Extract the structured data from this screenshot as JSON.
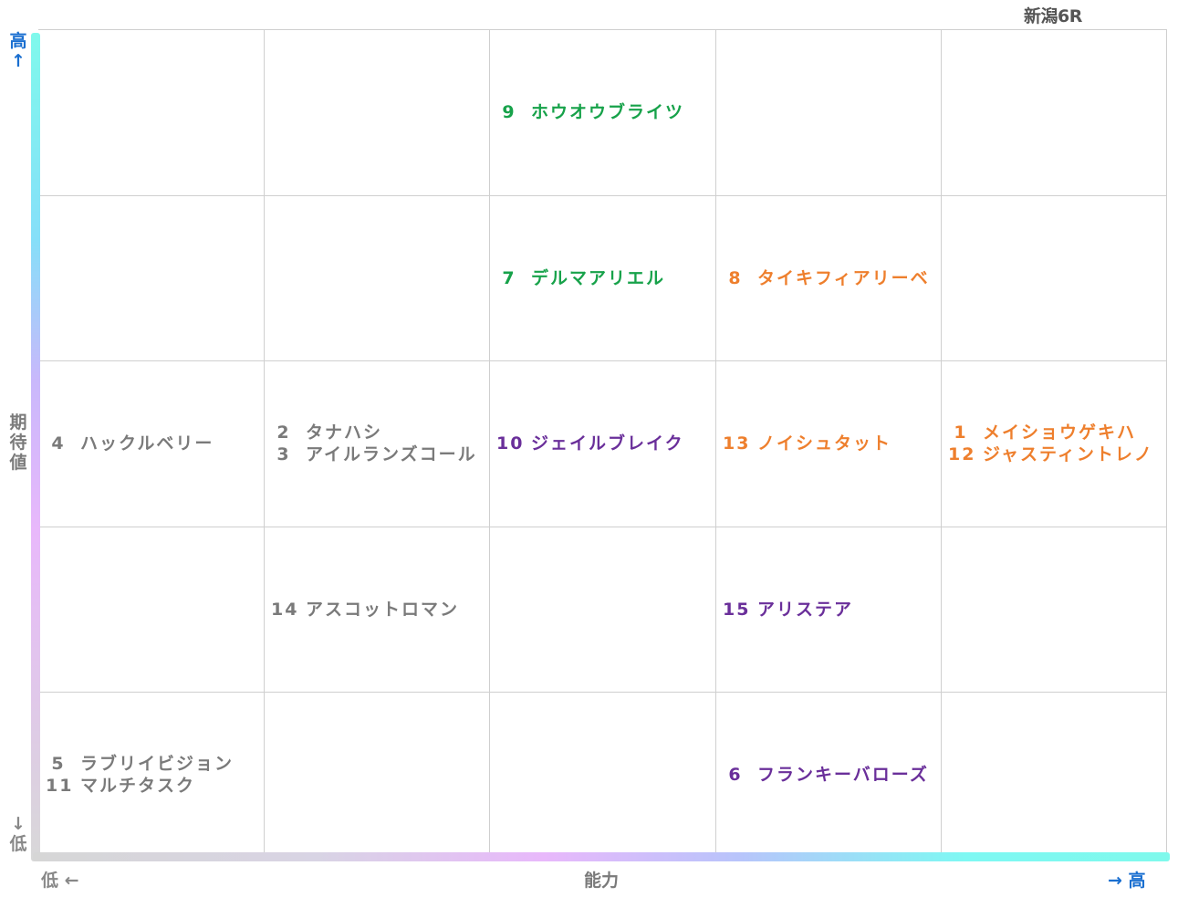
{
  "title": "新潟6R",
  "y_axis": {
    "label": "期待値",
    "high": "高↑",
    "low": "↓低",
    "high_color": "#1a6fd0",
    "low_color": "#888888"
  },
  "x_axis": {
    "label": "能力",
    "low": "低 ←",
    "high": "→ 高",
    "high_color": "#1a6fd0",
    "low_color": "#888888"
  },
  "colors": {
    "green": "#17a24a",
    "orange": "#ee7f2d",
    "purple": "#6a2f9a",
    "gray": "#7a7a7a",
    "grid": "#cfcfcf"
  },
  "chart_data": {
    "type": "scatter",
    "title": "新潟6R",
    "xlabel": "能力",
    "ylabel": "期待値",
    "x_levels": 5,
    "y_levels": 5,
    "points": [
      {
        "number": "9",
        "name": "ホウオウブライツ",
        "x": 3,
        "y": 5,
        "color": "green"
      },
      {
        "number": "7",
        "name": "デルマアリエル",
        "x": 3,
        "y": 4,
        "color": "green"
      },
      {
        "number": "8",
        "name": "タイキフィアリーベ",
        "x": 4,
        "y": 4,
        "color": "orange"
      },
      {
        "number": "4",
        "name": "ハックルベリー",
        "x": 1,
        "y": 3,
        "color": "gray"
      },
      {
        "number": "2",
        "name": "タナハシ",
        "x": 2,
        "y": 3,
        "color": "gray"
      },
      {
        "number": "3",
        "name": "アイルランズコール",
        "x": 2,
        "y": 3,
        "color": "gray"
      },
      {
        "number": "10",
        "name": "ジェイルブレイク",
        "x": 3,
        "y": 3,
        "color": "purple"
      },
      {
        "number": "13",
        "name": "ノイシュタット",
        "x": 4,
        "y": 3,
        "color": "orange"
      },
      {
        "number": "1",
        "name": "メイショウゲキハ",
        "x": 5,
        "y": 3,
        "color": "orange"
      },
      {
        "number": "12",
        "name": "ジャスティントレノ",
        "x": 5,
        "y": 3,
        "color": "orange"
      },
      {
        "number": "14",
        "name": "アスコットロマン",
        "x": 2,
        "y": 2,
        "color": "gray"
      },
      {
        "number": "15",
        "name": "アリステア",
        "x": 4,
        "y": 2,
        "color": "purple"
      },
      {
        "number": "5",
        "name": "ラブリイビジョン",
        "x": 1,
        "y": 1,
        "color": "gray"
      },
      {
        "number": "11",
        "name": "マルチタスク",
        "x": 1,
        "y": 1,
        "color": "gray"
      },
      {
        "number": "6",
        "name": "フランキーバローズ",
        "x": 4,
        "y": 1,
        "color": "purple"
      }
    ]
  }
}
